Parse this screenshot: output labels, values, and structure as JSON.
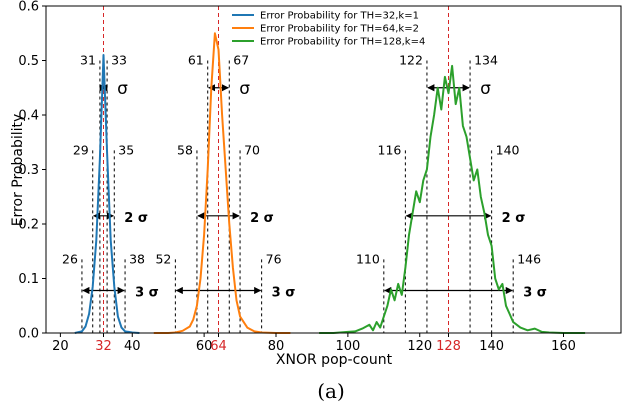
{
  "chart_data": {
    "type": "line",
    "caption": "(a)",
    "xlabel": "XNOR pop-count",
    "ylabel": "Error Probability",
    "xlim": [
      16,
      176
    ],
    "ylim": [
      0,
      0.6
    ],
    "x_ticks": [
      20,
      40,
      60,
      80,
      100,
      120,
      140,
      160
    ],
    "y_ticks": [
      "0.0",
      "0.1",
      "0.2",
      "0.3",
      "0.4",
      "0.5",
      "0.6"
    ],
    "highlighted_ticks": [
      32,
      64,
      128
    ],
    "highlight_color": "#d62728",
    "grid": false,
    "legend_position": "top-center",
    "series": [
      {
        "name": "Error Probability for TH=32,k=1",
        "color": "#1f77b4",
        "points": [
          [
            24,
            0
          ],
          [
            26,
            0.003
          ],
          [
            27,
            0.012
          ],
          [
            28,
            0.035
          ],
          [
            29,
            0.085
          ],
          [
            30,
            0.17
          ],
          [
            31,
            0.32
          ],
          [
            32,
            0.51
          ],
          [
            33,
            0.33
          ],
          [
            34,
            0.17
          ],
          [
            35,
            0.085
          ],
          [
            36,
            0.03
          ],
          [
            37,
            0.01
          ],
          [
            38,
            0.003
          ],
          [
            40,
            0.001
          ],
          [
            42,
            0
          ]
        ]
      },
      {
        "name": "Error Probability for TH=64,k=2",
        "color": "#ff7f0e",
        "points": [
          [
            46,
            0
          ],
          [
            50,
            0
          ],
          [
            52,
            0.001
          ],
          [
            54,
            0.004
          ],
          [
            56,
            0.012
          ],
          [
            57,
            0.025
          ],
          [
            58,
            0.05
          ],
          [
            59,
            0.1
          ],
          [
            60,
            0.18
          ],
          [
            61,
            0.3
          ],
          [
            62,
            0.45
          ],
          [
            63,
            0.55
          ],
          [
            64,
            0.52
          ],
          [
            65,
            0.4
          ],
          [
            66,
            0.3
          ],
          [
            67,
            0.2
          ],
          [
            68,
            0.12
          ],
          [
            69,
            0.06
          ],
          [
            70,
            0.03
          ],
          [
            72,
            0.01
          ],
          [
            74,
            0.003
          ],
          [
            76,
            0.001
          ],
          [
            80,
            0
          ],
          [
            84,
            0
          ]
        ]
      },
      {
        "name": "Error Probability for TH=128,k=4",
        "color": "#2ca02c",
        "points": [
          [
            92,
            0
          ],
          [
            96,
            0
          ],
          [
            100,
            0.002
          ],
          [
            102,
            0.003
          ],
          [
            104,
            0.008
          ],
          [
            106,
            0.015
          ],
          [
            107,
            0.005
          ],
          [
            108,
            0.02
          ],
          [
            109,
            0.01
          ],
          [
            110,
            0.03
          ],
          [
            111,
            0.05
          ],
          [
            112,
            0.08
          ],
          [
            113,
            0.06
          ],
          [
            114,
            0.09
          ],
          [
            115,
            0.07
          ],
          [
            116,
            0.12
          ],
          [
            117,
            0.18
          ],
          [
            118,
            0.22
          ],
          [
            119,
            0.26
          ],
          [
            120,
            0.24
          ],
          [
            121,
            0.28
          ],
          [
            122,
            0.3
          ],
          [
            123,
            0.36
          ],
          [
            124,
            0.4
          ],
          [
            125,
            0.45
          ],
          [
            126,
            0.41
          ],
          [
            127,
            0.47
          ],
          [
            128,
            0.44
          ],
          [
            129,
            0.49
          ],
          [
            130,
            0.42
          ],
          [
            131,
            0.45
          ],
          [
            132,
            0.38
          ],
          [
            133,
            0.36
          ],
          [
            134,
            0.32
          ],
          [
            135,
            0.28
          ],
          [
            136,
            0.3
          ],
          [
            137,
            0.25
          ],
          [
            138,
            0.22
          ],
          [
            139,
            0.18
          ],
          [
            140,
            0.16
          ],
          [
            141,
            0.1
          ],
          [
            142,
            0.08
          ],
          [
            143,
            0.09
          ],
          [
            144,
            0.05
          ],
          [
            145,
            0.035
          ],
          [
            146,
            0.02
          ],
          [
            148,
            0.01
          ],
          [
            150,
            0.005
          ],
          [
            152,
            0.008
          ],
          [
            154,
            0.002
          ],
          [
            156,
            0.001
          ],
          [
            160,
            0
          ],
          [
            166,
            0
          ]
        ]
      }
    ],
    "centers": [
      32,
      64,
      128
    ],
    "boundaries": [
      {
        "x": [
          31,
          33
        ],
        "top": 0.5,
        "labels": [
          "31",
          "33"
        ],
        "arrow_y": 0.45,
        "sigma": "σ",
        "bold": false
      },
      {
        "x": [
          29,
          35
        ],
        "top": 0.335,
        "labels": [
          "29",
          "35"
        ],
        "arrow_y": 0.215,
        "sigma": "2 σ",
        "bold": true
      },
      {
        "x": [
          26,
          38
        ],
        "top": 0.135,
        "labels": [
          "26",
          "38"
        ],
        "arrow_y": 0.078,
        "sigma": "3 σ",
        "bold": true
      },
      {
        "x": [
          61,
          67
        ],
        "top": 0.5,
        "labels": [
          "61",
          "67"
        ],
        "arrow_y": 0.45,
        "sigma": "σ",
        "bold": false
      },
      {
        "x": [
          58,
          70
        ],
        "top": 0.335,
        "labels": [
          "58",
          "70"
        ],
        "arrow_y": 0.215,
        "sigma": "2 σ",
        "bold": true
      },
      {
        "x": [
          52,
          76
        ],
        "top": 0.135,
        "labels": [
          "52",
          "76"
        ],
        "arrow_y": 0.078,
        "sigma": "3 σ",
        "bold": true
      },
      {
        "x": [
          122,
          134
        ],
        "top": 0.5,
        "labels": [
          "122",
          "134"
        ],
        "arrow_y": 0.45,
        "sigma": "σ",
        "bold": false
      },
      {
        "x": [
          116,
          140
        ],
        "top": 0.335,
        "labels": [
          "116",
          "140"
        ],
        "arrow_y": 0.215,
        "sigma": "2 σ",
        "bold": true
      },
      {
        "x": [
          110,
          146
        ],
        "top": 0.135,
        "labels": [
          "110",
          "146"
        ],
        "arrow_y": 0.078,
        "sigma": "3 σ",
        "bold": true
      }
    ]
  }
}
